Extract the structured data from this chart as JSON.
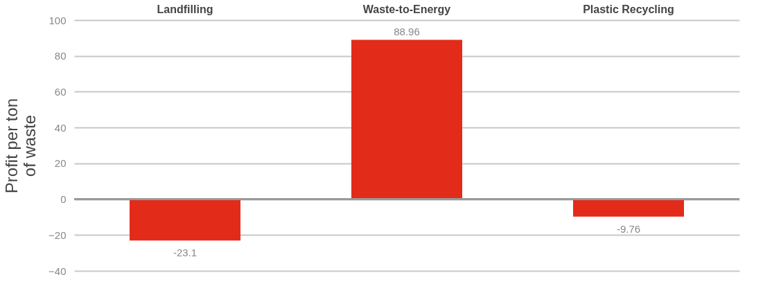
{
  "chart_data": {
    "type": "bar",
    "ylabel": "Profit per ton of waste",
    "categories": [
      "Landfilling",
      "Waste-to-Energy",
      "Plastic Recycling"
    ],
    "values": [
      -23.1,
      88.96,
      -9.76
    ],
    "color": "#e32b1a",
    "ylim": [
      -40,
      100
    ],
    "yticks": [
      -40,
      -20,
      0,
      20,
      40,
      60,
      80,
      100
    ],
    "grid": "y",
    "data_labels": true
  }
}
